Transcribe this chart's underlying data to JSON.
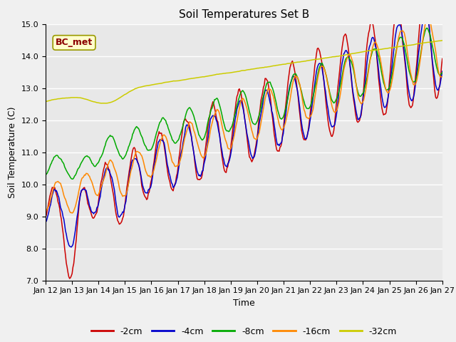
{
  "title": "Soil Temperatures Set B",
  "xlabel": "Time",
  "ylabel": "Soil Temperature (C)",
  "annotation": "BC_met",
  "ylim": [
    7.0,
    15.0
  ],
  "yticks": [
    7.0,
    8.0,
    9.0,
    10.0,
    11.0,
    12.0,
    13.0,
    14.0,
    15.0
  ],
  "xtick_labels": [
    "Jan 12",
    "Jan 13",
    "Jan 14",
    "Jan 15",
    "Jan 16",
    "Jan 17",
    "Jan 18",
    "Jan 19",
    "Jan 20",
    "Jan 21",
    "Jan 22",
    "Jan 23",
    "Jan 24",
    "Jan 25",
    "Jan 26",
    "Jan 27"
  ],
  "series_labels": [
    "-2cm",
    "-4cm",
    "-8cm",
    "-16cm",
    "-32cm"
  ],
  "series_colors": [
    "#cc0000",
    "#0000cc",
    "#00aa00",
    "#ff8800",
    "#cccc00"
  ],
  "background_color": "#e8e8e8",
  "fig_facecolor": "#f0f0f0",
  "n_points": 480,
  "title_fontsize": 11,
  "axis_label_fontsize": 9,
  "tick_fontsize": 8,
  "legend_fontsize": 9
}
